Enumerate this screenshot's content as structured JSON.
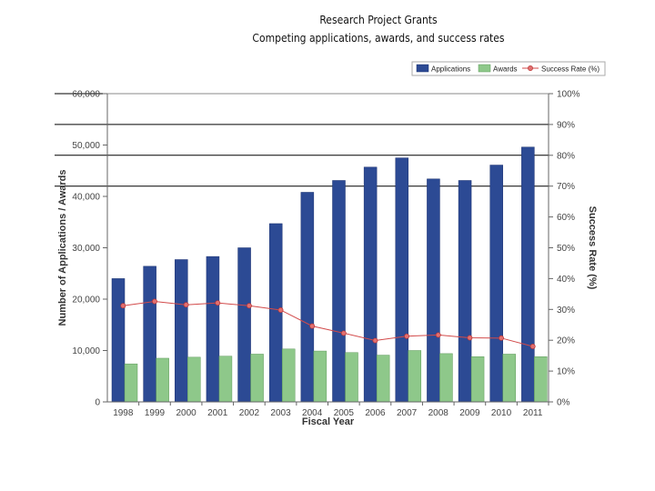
{
  "chart_data": {
    "type": "bar",
    "title": "Research Project Grants",
    "subtitle": "Competing applications, awards, and success rates",
    "xlabel": "Fiscal Year",
    "ylabel": "Number of Applications / Awards",
    "y2label": "Success Rate (%)",
    "categories": [
      "1998",
      "1999",
      "2000",
      "2001",
      "2002",
      "2003",
      "2004",
      "2005",
      "2006",
      "2007",
      "2008",
      "2009",
      "2010",
      "2011"
    ],
    "ylim": [
      0,
      60000
    ],
    "y2lim": [
      0,
      100
    ],
    "yticks": [
      "0",
      "10,000",
      "20,000",
      "30,000",
      "40,000",
      "50,000",
      "60,000"
    ],
    "y2ticks": [
      "0%",
      "10%",
      "20%",
      "30%",
      "40%",
      "50%",
      "60%",
      "70%",
      "80%",
      "90%",
      "100%"
    ],
    "grid": false,
    "legend_position": "top-right",
    "series": [
      {
        "name": "Applications",
        "kind": "bar",
        "axis": "left",
        "color": "#2c4a94",
        "values": [
          24000,
          26400,
          27700,
          28300,
          30000,
          34700,
          40800,
          43100,
          45700,
          47500,
          43400,
          43100,
          46100,
          49600
        ]
      },
      {
        "name": "Awards",
        "kind": "bar",
        "axis": "left",
        "color": "#8ec88a",
        "values": [
          7400,
          8500,
          8700,
          8900,
          9300,
          10300,
          9900,
          9600,
          9100,
          10000,
          9400,
          8800,
          9300,
          8800
        ]
      },
      {
        "name": "Success Rate (%)",
        "kind": "line",
        "axis": "right",
        "color": "#d24a4a",
        "values": [
          31.2,
          32.6,
          31.5,
          32.1,
          31.2,
          29.8,
          24.6,
          22.3,
          19.9,
          21.3,
          21.7,
          20.8,
          20.7,
          18.0
        ]
      }
    ]
  }
}
